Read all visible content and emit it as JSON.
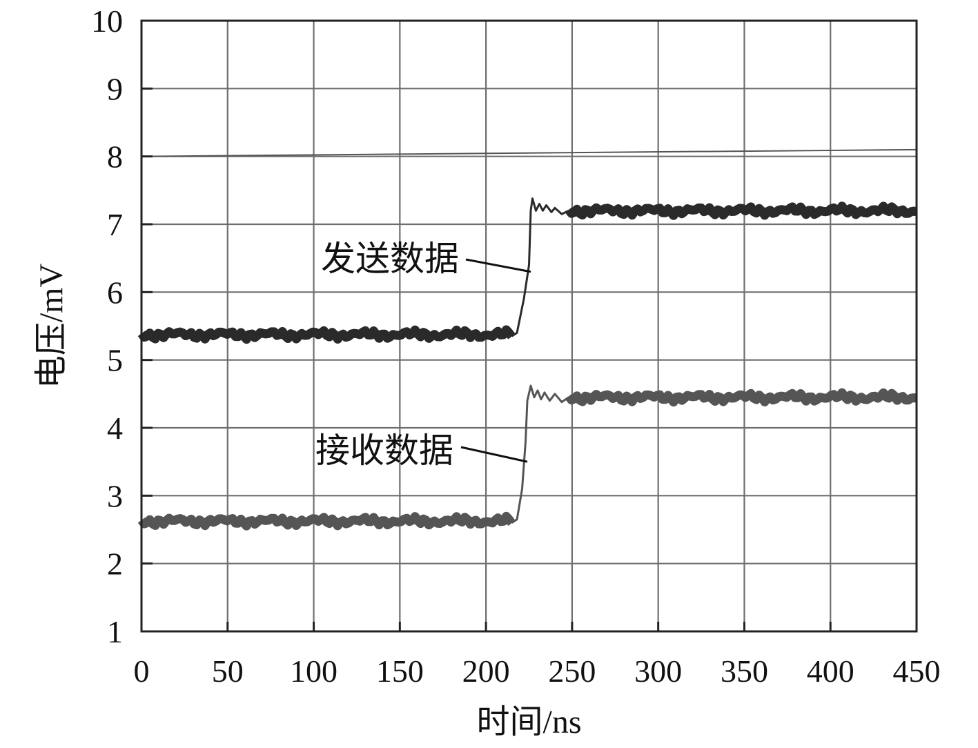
{
  "chart_data": {
    "type": "line",
    "xlabel": "时间/ns",
    "ylabel": "电压/mV",
    "xlim": [
      0,
      450
    ],
    "ylim": [
      1,
      10
    ],
    "x_ticks": [
      0,
      50,
      100,
      150,
      200,
      250,
      300,
      350,
      400,
      450
    ],
    "y_ticks": [
      1,
      2,
      3,
      4,
      5,
      6,
      7,
      8,
      9,
      10
    ],
    "grid": true,
    "series": [
      {
        "name": "发送数据",
        "color": "#2a2a2a",
        "points": [
          [
            0,
            5.4
          ],
          [
            215,
            5.35
          ],
          [
            218,
            5.4
          ],
          [
            222,
            5.9
          ],
          [
            225,
            6.4
          ],
          [
            226,
            7.2
          ],
          [
            227,
            7.38
          ],
          [
            229,
            7.2
          ],
          [
            231,
            7.3
          ],
          [
            233,
            7.2
          ],
          [
            235,
            7.28
          ],
          [
            238,
            7.18
          ],
          [
            240,
            7.24
          ],
          [
            244,
            7.15
          ],
          [
            248,
            7.2
          ],
          [
            450,
            7.2
          ]
        ]
      },
      {
        "name": "接收数据",
        "color": "#555555",
        "points": [
          [
            0,
            2.65
          ],
          [
            215,
            2.6
          ],
          [
            218,
            2.65
          ],
          [
            221,
            3.1
          ],
          [
            223,
            3.8
          ],
          [
            224,
            4.4
          ],
          [
            226,
            4.62
          ],
          [
            228,
            4.45
          ],
          [
            230,
            4.55
          ],
          [
            232,
            4.42
          ],
          [
            234,
            4.52
          ],
          [
            237,
            4.4
          ],
          [
            240,
            4.5
          ],
          [
            244,
            4.38
          ],
          [
            248,
            4.45
          ],
          [
            450,
            4.45
          ]
        ]
      }
    ],
    "reference_line": {
      "color": "#555555",
      "points": [
        [
          0,
          8.0
        ],
        [
          450,
          8.1
        ]
      ]
    },
    "annotations": [
      {
        "text": "发送数据",
        "target": [
          226,
          6.3
        ]
      },
      {
        "text": "接收数据",
        "target": [
          224,
          3.5
        ]
      }
    ]
  }
}
